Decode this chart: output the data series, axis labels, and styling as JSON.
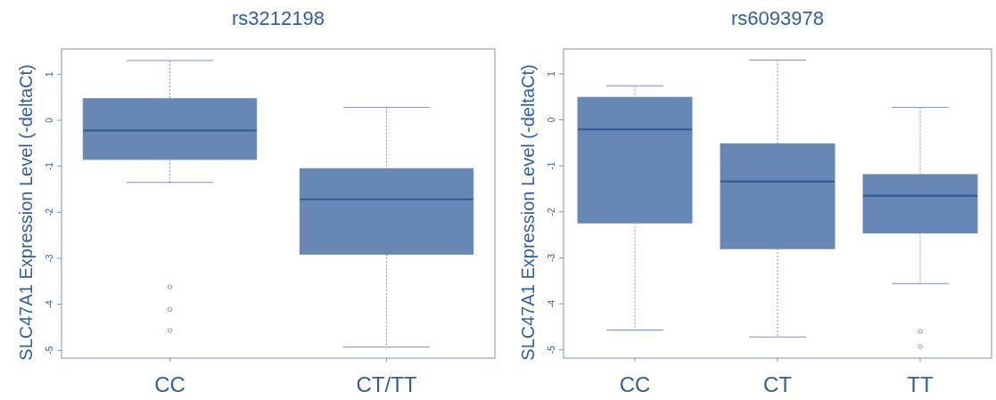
{
  "chart_data": [
    {
      "type": "box",
      "title": "rs3212198",
      "ylabel": "SLC47A1 Expression Level (-deltaCt)",
      "categories": [
        "CC",
        "CT/TT"
      ],
      "color": "#6787b5",
      "ylim": [
        -5.17,
        1.55
      ],
      "yticks": [
        -5,
        -4,
        -3,
        -2,
        -1,
        0,
        1
      ],
      "boxes": [
        {
          "low": -1.35,
          "q1": -0.85,
          "median": -0.22,
          "q3": 0.47,
          "high": 1.3,
          "outliers": [
            -3.62,
            -4.11,
            -4.57
          ]
        },
        {
          "low": -4.93,
          "q1": -2.91,
          "median": -1.72,
          "q3": -1.05,
          "high": 0.28
        }
      ]
    },
    {
      "type": "box",
      "title": "rs6093978",
      "ylabel": "SLC47A1 Expression Level (-deltaCt)",
      "categories": [
        "CC",
        "CT",
        "TT"
      ],
      "color": "#6787b5",
      "ylim": [
        -5.18,
        1.54
      ],
      "yticks": [
        -5,
        -4,
        -3,
        -2,
        -1,
        0,
        1
      ],
      "boxes": [
        {
          "low": -4.57,
          "q1": -2.24,
          "median": -0.21,
          "q3": 0.49,
          "high": 0.74
        },
        {
          "low": -4.72,
          "q1": -2.8,
          "median": -1.34,
          "q3": -0.52,
          "high": 1.3
        },
        {
          "low": -3.56,
          "q1": -2.46,
          "median": -1.65,
          "q3": -1.19,
          "high": 0.27,
          "outliers": [
            -4.6,
            -4.93
          ]
        }
      ]
    }
  ]
}
